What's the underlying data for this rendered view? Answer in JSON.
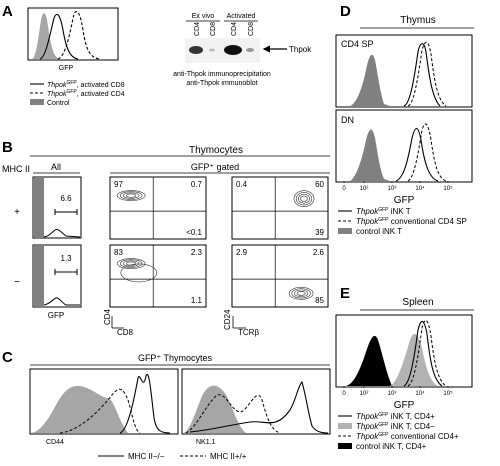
{
  "panels": {
    "a": {
      "letter": "A",
      "hist_xlabel": "GFP",
      "legend": [
        {
          "italic": "Thpok",
          "sup": "GFP",
          "rest": ", activated CD8",
          "style": "solid"
        },
        {
          "italic": "Thpok",
          "sup": "GFP",
          "rest": ", activated CD4",
          "style": "dashed"
        },
        {
          "italic": "",
          "sup": "",
          "rest": "Control",
          "style": "filled"
        }
      ],
      "blot": {
        "group_ex_vivo": "Ex vivo",
        "group_activated": "Activated",
        "lanes": [
          "CD4",
          "CD8",
          "CD4",
          "CD8"
        ],
        "band_label": "Thpok",
        "caption_line1": "anti-Thpok immunoprecipitation",
        "caption_line2": "anti-Thpok immunoblot"
      }
    },
    "b": {
      "letter": "B",
      "title": "Thymocytes",
      "mhc_label": "MHC II",
      "col_all": "All",
      "col_gated": "GFP⁺ gated",
      "row_plus": "+",
      "row_minus": "−",
      "hist_xlabel": "GFP",
      "gate_plus": "6.6",
      "gate_minus": "1.3",
      "cd4cd8_plus": [
        "97",
        "0.7",
        "<0.1"
      ],
      "cd4cd8_minus": [
        "83",
        "2.3",
        "1.1"
      ],
      "cd24tcr_plus": [
        "0.4",
        "60",
        "39"
      ],
      "cd24tcr_minus": [
        "2.9",
        "2.6",
        "85"
      ],
      "axis_cd4": "CD4",
      "axis_cd8": "CD8",
      "axis_cd24": "CD24",
      "axis_tcrb": "TCRβ"
    },
    "c": {
      "letter": "C",
      "title": "GFP⁺ Thymocytes",
      "xlabel_left": "CD44",
      "xlabel_right": "NK1.1",
      "legend_solid": "MHC II−/−",
      "legend_dashed": "MHC II+/+"
    },
    "d": {
      "letter": "D",
      "title": "Thymus",
      "row_top": "CD4 SP",
      "row_bottom": "DN",
      "ticks": [
        "0",
        "10²",
        "10³",
        "10⁴",
        "10⁵"
      ],
      "xlabel": "GFP",
      "legend": [
        {
          "italic": "Thpok",
          "sup": "GFP",
          "rest": " iNK T",
          "style": "solid"
        },
        {
          "italic": "Thpok",
          "sup": "GFP",
          "rest": " conventional CD4 SP",
          "style": "dashed"
        },
        {
          "italic": "",
          "sup": "",
          "rest": "control iNK T",
          "style": "filled"
        }
      ]
    },
    "e": {
      "letter": "E",
      "title": "Spleen",
      "ticks": [
        "0",
        "10²",
        "10³",
        "10⁴",
        "10⁵"
      ],
      "xlabel": "GFP",
      "legend": [
        {
          "italic": "Thpok",
          "sup": "GFP",
          "rest": " iNK T, CD4+",
          "style": "solid"
        },
        {
          "italic": "Thpok",
          "sup": "GFP",
          "rest": " iNK T, CD4−",
          "style": "gray"
        },
        {
          "italic": "Thpok",
          "sup": "GFP",
          "rest": " conventional CD4+",
          "style": "dashed"
        },
        {
          "italic": "",
          "sup": "",
          "rest": "control iNK T, CD4+",
          "style": "black"
        }
      ]
    }
  }
}
